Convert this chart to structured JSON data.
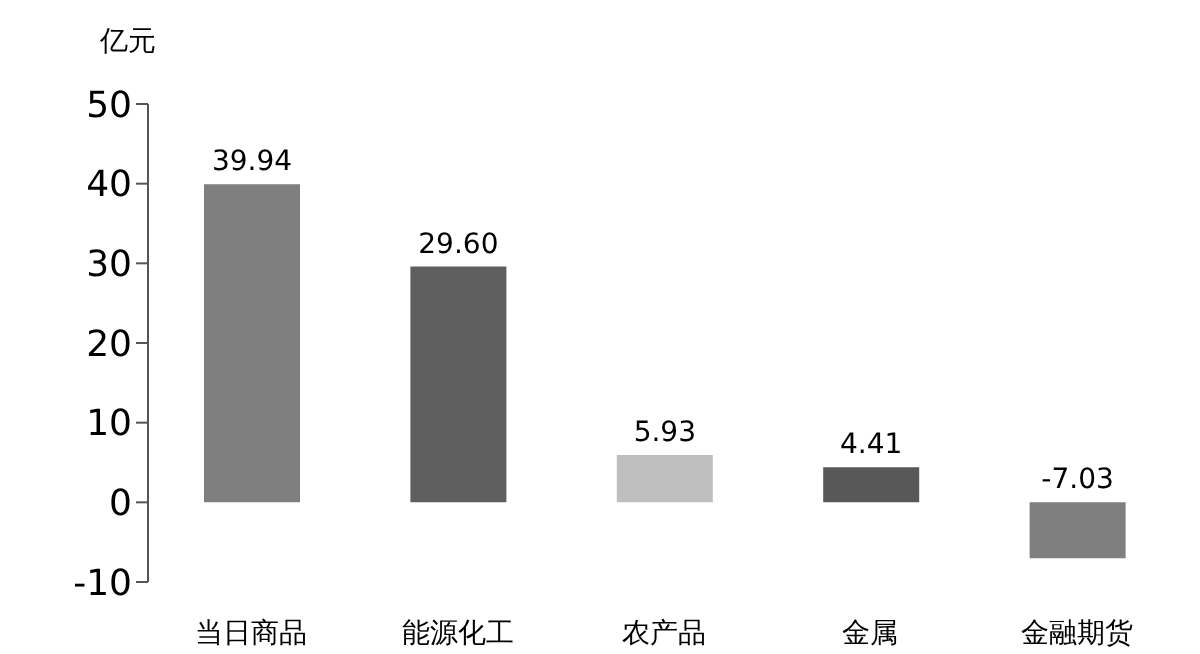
{
  "chart_data": {
    "type": "bar",
    "ylabel": "亿元",
    "categories": [
      "当日商品",
      "能源化工",
      "农产品",
      "金属",
      "金融期货"
    ],
    "values": [
      39.94,
      29.6,
      5.93,
      4.41,
      -7.03
    ],
    "colors": [
      "#7f7f7f",
      "#5f5f5f",
      "#bfbfbf",
      "#585858",
      "#7f7f7f"
    ],
    "ylim": [
      -10,
      50
    ],
    "yticks": [
      -10,
      0,
      10,
      20,
      30,
      40,
      50
    ],
    "value_labels": [
      "39.94",
      "29.60",
      "5.93",
      "4.41",
      "-7.03"
    ],
    "grid": false,
    "legend": false
  }
}
